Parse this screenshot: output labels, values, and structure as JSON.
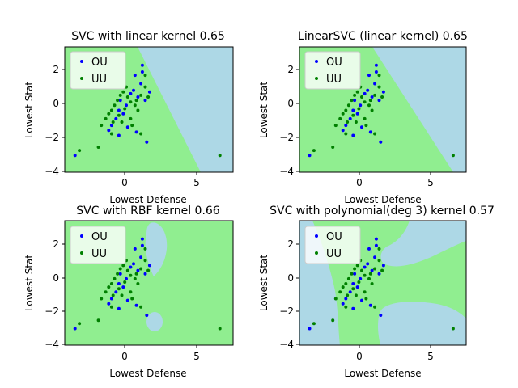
{
  "colors": {
    "class_ou_region": "#add8e6",
    "class_uu_region": "#90ee90",
    "ou_points": "#0000ff",
    "uu_points": "#008000",
    "axes": "#000000",
    "legend_face": "#ffffff"
  },
  "chart_data": [
    {
      "type": "scatter",
      "title": "SVC with linear kernel 0.65",
      "xlabel": "Lowest Defense",
      "ylabel": "Lowest Stat",
      "xlim": [
        -4,
        7.5
      ],
      "ylim": [
        -4,
        3.5
      ],
      "xticks": [
        0,
        5
      ],
      "yticks": [
        -4,
        -2,
        0,
        2
      ],
      "legend": {
        "placement": "top-left",
        "entries": [
          "OU",
          "UU"
        ]
      },
      "decision_regions": {
        "OU": "upper-right",
        "UU": "lower-left",
        "boundary": "line from (0.5,3.5) to (5.2,-4)"
      },
      "series": [
        {
          "name": "OU",
          "color": "#0000ff",
          "points": [
            [
              -3.3,
              -3.0
            ],
            [
              1.3,
              2.4
            ],
            [
              1.3,
              2.0
            ],
            [
              0.8,
              1.8
            ],
            [
              1.8,
              0.8
            ],
            [
              0.5,
              0.7
            ],
            [
              1.0,
              0.5
            ],
            [
              1.5,
              0.3
            ],
            [
              0.2,
              0.0
            ],
            [
              -0.3,
              -0.3
            ],
            [
              0.0,
              -0.5
            ],
            [
              -0.5,
              -0.8
            ],
            [
              -0.8,
              -1.2
            ],
            [
              -1.0,
              -1.5
            ],
            [
              0.3,
              -1.3
            ],
            [
              0.9,
              -1.6
            ],
            [
              -0.3,
              -1.8
            ],
            [
              1.6,
              -2.2
            ],
            [
              0.7,
              0.9
            ],
            [
              1.2,
              1.3
            ],
            [
              -0.2,
              0.3
            ]
          ]
        },
        {
          "name": "UU",
          "color": "#008000",
          "points": [
            [
              -3.0,
              -2.7
            ],
            [
              -1.7,
              -2.5
            ],
            [
              6.6,
              -3.0
            ],
            [
              -1.5,
              -1.2
            ],
            [
              -1.2,
              -0.8
            ],
            [
              -1.0,
              -0.5
            ],
            [
              -0.8,
              -0.3
            ],
            [
              -0.6,
              0.0
            ],
            [
              -0.4,
              0.3
            ],
            [
              -0.2,
              0.6
            ],
            [
              0.0,
              0.8
            ],
            [
              0.3,
              0.5
            ],
            [
              0.5,
              0.2
            ],
            [
              0.8,
              0.0
            ],
            [
              1.0,
              -0.3
            ],
            [
              1.2,
              0.6
            ],
            [
              1.5,
              1.1
            ],
            [
              1.7,
              0.5
            ],
            [
              0.1,
              -0.2
            ],
            [
              -0.3,
              -0.6
            ],
            [
              0.5,
              -0.8
            ],
            [
              1.2,
              -1.7
            ],
            [
              -0.8,
              -1.7
            ],
            [
              0.6,
              -1.2
            ],
            [
              1.5,
              1.8
            ],
            [
              0.9,
              0.3
            ],
            [
              -0.7,
              -1.0
            ],
            [
              0.2,
              1.1
            ],
            [
              -0.1,
              -1.0
            ]
          ]
        }
      ]
    },
    {
      "type": "scatter",
      "title": "LinearSVC (linear kernel) 0.65",
      "xlabel": "Lowest Defense",
      "ylabel": "Lowest Stat",
      "xlim": [
        -4,
        7.5
      ],
      "ylim": [
        -4,
        3.5
      ],
      "xticks": [
        0,
        5
      ],
      "yticks": [
        -4,
        -2,
        0,
        2
      ],
      "legend": {
        "placement": "top-left",
        "entries": [
          "OU",
          "UU"
        ]
      },
      "decision_regions": {
        "OU": "upper-right",
        "UU": "lower-left",
        "boundary": "line from (1.0,3.5) to (6.7,-4)"
      },
      "series": [
        {
          "name": "OU",
          "color": "#0000ff",
          "points": [
            [
              -3.3,
              -3.0
            ],
            [
              1.3,
              2.4
            ],
            [
              1.3,
              2.0
            ],
            [
              0.8,
              1.8
            ],
            [
              1.8,
              0.8
            ],
            [
              0.5,
              0.7
            ],
            [
              1.0,
              0.5
            ],
            [
              1.5,
              0.3
            ],
            [
              0.2,
              0.0
            ],
            [
              -0.3,
              -0.3
            ],
            [
              0.0,
              -0.5
            ],
            [
              -0.5,
              -0.8
            ],
            [
              -0.8,
              -1.2
            ],
            [
              -1.0,
              -1.5
            ],
            [
              0.3,
              -1.3
            ],
            [
              0.9,
              -1.6
            ],
            [
              -0.3,
              -1.8
            ],
            [
              1.6,
              -2.2
            ],
            [
              0.7,
              0.9
            ],
            [
              1.2,
              1.3
            ],
            [
              -0.2,
              0.3
            ]
          ]
        },
        {
          "name": "UU",
          "color": "#008000",
          "points": [
            [
              -3.0,
              -2.7
            ],
            [
              -1.7,
              -2.5
            ],
            [
              6.6,
              -3.0
            ],
            [
              -1.5,
              -1.2
            ],
            [
              -1.2,
              -0.8
            ],
            [
              -1.0,
              -0.5
            ],
            [
              -0.8,
              -0.3
            ],
            [
              -0.6,
              0.0
            ],
            [
              -0.4,
              0.3
            ],
            [
              -0.2,
              0.6
            ],
            [
              0.0,
              0.8
            ],
            [
              0.3,
              0.5
            ],
            [
              0.5,
              0.2
            ],
            [
              0.8,
              0.0
            ],
            [
              1.0,
              -0.3
            ],
            [
              1.2,
              0.6
            ],
            [
              1.5,
              1.1
            ],
            [
              1.7,
              0.5
            ],
            [
              0.1,
              -0.2
            ],
            [
              -0.3,
              -0.6
            ],
            [
              0.5,
              -0.8
            ],
            [
              1.2,
              -1.7
            ],
            [
              -0.8,
              -1.7
            ],
            [
              0.6,
              -1.2
            ],
            [
              1.5,
              1.8
            ],
            [
              0.9,
              0.3
            ],
            [
              -0.7,
              -1.0
            ],
            [
              0.2,
              1.1
            ],
            [
              -0.1,
              -1.0
            ]
          ]
        }
      ]
    },
    {
      "type": "scatter",
      "title": "SVC with RBF kernel 0.66",
      "xlabel": "Lowest Defense",
      "ylabel": "Lowest Stat",
      "xlim": [
        -4,
        7.5
      ],
      "ylim": [
        -4,
        3.5
      ],
      "xticks": [
        0,
        5
      ],
      "yticks": [
        -4,
        -2,
        0,
        2
      ],
      "legend": {
        "placement": "top-left",
        "entries": [
          "OU",
          "UU"
        ]
      },
      "decision_regions": {
        "OU": "small islands around (1.3,2.5) and (2.0,-2.5)",
        "UU": "rest of plane"
      },
      "series": [
        {
          "name": "OU",
          "color": "#0000ff",
          "points": [
            [
              -3.3,
              -3.0
            ],
            [
              1.3,
              2.4
            ],
            [
              1.3,
              2.0
            ],
            [
              0.8,
              1.8
            ],
            [
              1.8,
              0.8
            ],
            [
              0.5,
              0.7
            ],
            [
              1.0,
              0.5
            ],
            [
              1.5,
              0.3
            ],
            [
              0.2,
              0.0
            ],
            [
              -0.3,
              -0.3
            ],
            [
              0.0,
              -0.5
            ],
            [
              -0.5,
              -0.8
            ],
            [
              -0.8,
              -1.2
            ],
            [
              -1.0,
              -1.5
            ],
            [
              0.3,
              -1.3
            ],
            [
              0.9,
              -1.6
            ],
            [
              -0.3,
              -1.8
            ],
            [
              1.6,
              -2.2
            ],
            [
              0.7,
              0.9
            ],
            [
              1.2,
              1.3
            ],
            [
              -0.2,
              0.3
            ]
          ]
        },
        {
          "name": "UU",
          "color": "#008000",
          "points": [
            [
              -3.0,
              -2.7
            ],
            [
              -1.7,
              -2.5
            ],
            [
              6.6,
              -3.0
            ],
            [
              -1.5,
              -1.2
            ],
            [
              -1.2,
              -0.8
            ],
            [
              -1.0,
              -0.5
            ],
            [
              -0.8,
              -0.3
            ],
            [
              -0.6,
              0.0
            ],
            [
              -0.4,
              0.3
            ],
            [
              -0.2,
              0.6
            ],
            [
              0.0,
              0.8
            ],
            [
              0.3,
              0.5
            ],
            [
              0.5,
              0.2
            ],
            [
              0.8,
              0.0
            ],
            [
              1.0,
              -0.3
            ],
            [
              1.2,
              0.6
            ],
            [
              1.5,
              1.1
            ],
            [
              1.7,
              0.5
            ],
            [
              0.1,
              -0.2
            ],
            [
              -0.3,
              -0.6
            ],
            [
              0.5,
              -0.8
            ],
            [
              1.2,
              -1.7
            ],
            [
              -0.8,
              -1.7
            ],
            [
              0.6,
              -1.2
            ],
            [
              1.5,
              1.8
            ],
            [
              0.9,
              0.3
            ],
            [
              -0.7,
              -1.0
            ],
            [
              0.2,
              1.1
            ],
            [
              -0.1,
              -1.0
            ]
          ]
        }
      ]
    },
    {
      "type": "scatter",
      "title": "SVC with polynomial(deg 3) kernel 0.57",
      "xlabel": "Lowest Defense",
      "ylabel": "Lowest Stat",
      "xlim": [
        -4,
        7.5
      ],
      "ylim": [
        -4,
        3.5
      ],
      "xticks": [
        0,
        5
      ],
      "yticks": [
        -4,
        -2,
        0,
        2
      ],
      "legend": {
        "placement": "top-left",
        "entries": [
          "OU",
          "UU"
        ]
      },
      "decision_regions": {
        "OU": "left band, lower-right corner, upper-right lobe",
        "UU": "central band and top-right"
      },
      "series": [
        {
          "name": "OU",
          "color": "#0000ff",
          "points": [
            [
              -3.3,
              -3.0
            ],
            [
              1.3,
              2.4
            ],
            [
              1.3,
              2.0
            ],
            [
              0.8,
              1.8
            ],
            [
              1.8,
              0.8
            ],
            [
              0.5,
              0.7
            ],
            [
              1.0,
              0.5
            ],
            [
              1.5,
              0.3
            ],
            [
              0.2,
              0.0
            ],
            [
              -0.3,
              -0.3
            ],
            [
              0.0,
              -0.5
            ],
            [
              -0.5,
              -0.8
            ],
            [
              -0.8,
              -1.2
            ],
            [
              -1.0,
              -1.5
            ],
            [
              0.3,
              -1.3
            ],
            [
              0.9,
              -1.6
            ],
            [
              -0.3,
              -1.8
            ],
            [
              1.6,
              -2.2
            ],
            [
              0.7,
              0.9
            ],
            [
              1.2,
              1.3
            ],
            [
              -0.2,
              0.3
            ]
          ]
        },
        {
          "name": "UU",
          "color": "#008000",
          "points": [
            [
              -3.0,
              -2.7
            ],
            [
              -1.7,
              -2.5
            ],
            [
              6.6,
              -3.0
            ],
            [
              -1.5,
              -1.2
            ],
            [
              -1.2,
              -0.8
            ],
            [
              -1.0,
              -0.5
            ],
            [
              -0.8,
              -0.3
            ],
            [
              -0.6,
              0.0
            ],
            [
              -0.4,
              0.3
            ],
            [
              -0.2,
              0.6
            ],
            [
              0.0,
              0.8
            ],
            [
              0.3,
              0.5
            ],
            [
              0.5,
              0.2
            ],
            [
              0.8,
              0.0
            ],
            [
              1.0,
              -0.3
            ],
            [
              1.2,
              0.6
            ],
            [
              1.5,
              1.1
            ],
            [
              1.7,
              0.5
            ],
            [
              0.1,
              -0.2
            ],
            [
              -0.3,
              -0.6
            ],
            [
              0.5,
              -0.8
            ],
            [
              1.2,
              -1.7
            ],
            [
              -0.8,
              -1.7
            ],
            [
              0.6,
              -1.2
            ],
            [
              1.5,
              1.8
            ],
            [
              0.9,
              0.3
            ],
            [
              -0.7,
              -1.0
            ],
            [
              0.2,
              1.1
            ],
            [
              -0.1,
              -1.0
            ]
          ]
        }
      ]
    }
  ]
}
